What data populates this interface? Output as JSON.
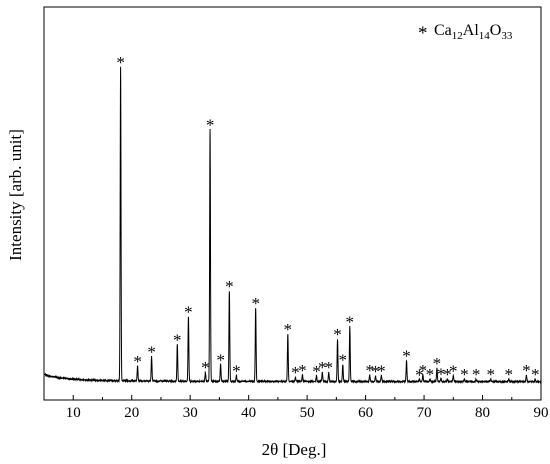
{
  "chart_data": {
    "type": "line",
    "xlabel": "2θ [Deg.]",
    "ylabel": "Intensity [arb. unit]",
    "xlim": [
      5,
      90
    ],
    "ylim": [
      0,
      100
    ],
    "x_ticks": [
      10,
      20,
      30,
      40,
      50,
      60,
      70,
      80,
      90
    ],
    "y_ticks_shown": false,
    "grid": false,
    "legend": {
      "position": "top-right",
      "marker": "*",
      "label_parts": [
        {
          "text": "Ca",
          "sub": "12"
        },
        {
          "text": "Al",
          "sub": "14"
        },
        {
          "text": "O",
          "sub": "33"
        }
      ]
    },
    "series": [
      {
        "baseline": {
          "x": [
            5,
            6,
            8,
            10,
            12,
            15,
            20,
            30,
            50,
            90
          ],
          "y": [
            2.2,
            1.6,
            1.1,
            0.8,
            0.6,
            0.4,
            0.3,
            0.2,
            0.15,
            0.1
          ]
        },
        "peaks": [
          {
            "x": 18.1,
            "y": 87.0
          },
          {
            "x": 21.0,
            "y": 4.4
          },
          {
            "x": 23.4,
            "y": 7.0
          },
          {
            "x": 27.8,
            "y": 10.3
          },
          {
            "x": 29.7,
            "y": 18.1
          },
          {
            "x": 32.6,
            "y": 2.7
          },
          {
            "x": 33.4,
            "y": 69.8
          },
          {
            "x": 35.2,
            "y": 4.9
          },
          {
            "x": 36.7,
            "y": 25.2
          },
          {
            "x": 37.9,
            "y": 1.8
          },
          {
            "x": 41.2,
            "y": 20.5
          },
          {
            "x": 46.7,
            "y": 13.3
          },
          {
            "x": 48.0,
            "y": 1.4
          },
          {
            "x": 49.2,
            "y": 2.0
          },
          {
            "x": 51.6,
            "y": 1.7
          },
          {
            "x": 52.6,
            "y": 2.8
          },
          {
            "x": 53.7,
            "y": 2.7
          },
          {
            "x": 55.2,
            "y": 11.9
          },
          {
            "x": 56.1,
            "y": 4.9
          },
          {
            "x": 57.3,
            "y": 15.4
          },
          {
            "x": 60.7,
            "y": 2.0
          },
          {
            "x": 61.7,
            "y": 1.7
          },
          {
            "x": 62.7,
            "y": 1.8
          },
          {
            "x": 67.0,
            "y": 5.9
          },
          {
            "x": 69.2,
            "y": 0.7
          },
          {
            "x": 69.8,
            "y": 1.9
          },
          {
            "x": 71.0,
            "y": 0.8
          },
          {
            "x": 72.2,
            "y": 3.9
          },
          {
            "x": 72.9,
            "y": 1.0
          },
          {
            "x": 74.0,
            "y": 0.8
          },
          {
            "x": 75.0,
            "y": 1.8
          },
          {
            "x": 76.9,
            "y": 0.8
          },
          {
            "x": 78.9,
            "y": 0.8
          },
          {
            "x": 81.4,
            "y": 0.8
          },
          {
            "x": 84.5,
            "y": 0.8
          },
          {
            "x": 87.5,
            "y": 1.9
          },
          {
            "x": 89.0,
            "y": 0.8
          }
        ],
        "peak_marker": "*"
      }
    ]
  }
}
